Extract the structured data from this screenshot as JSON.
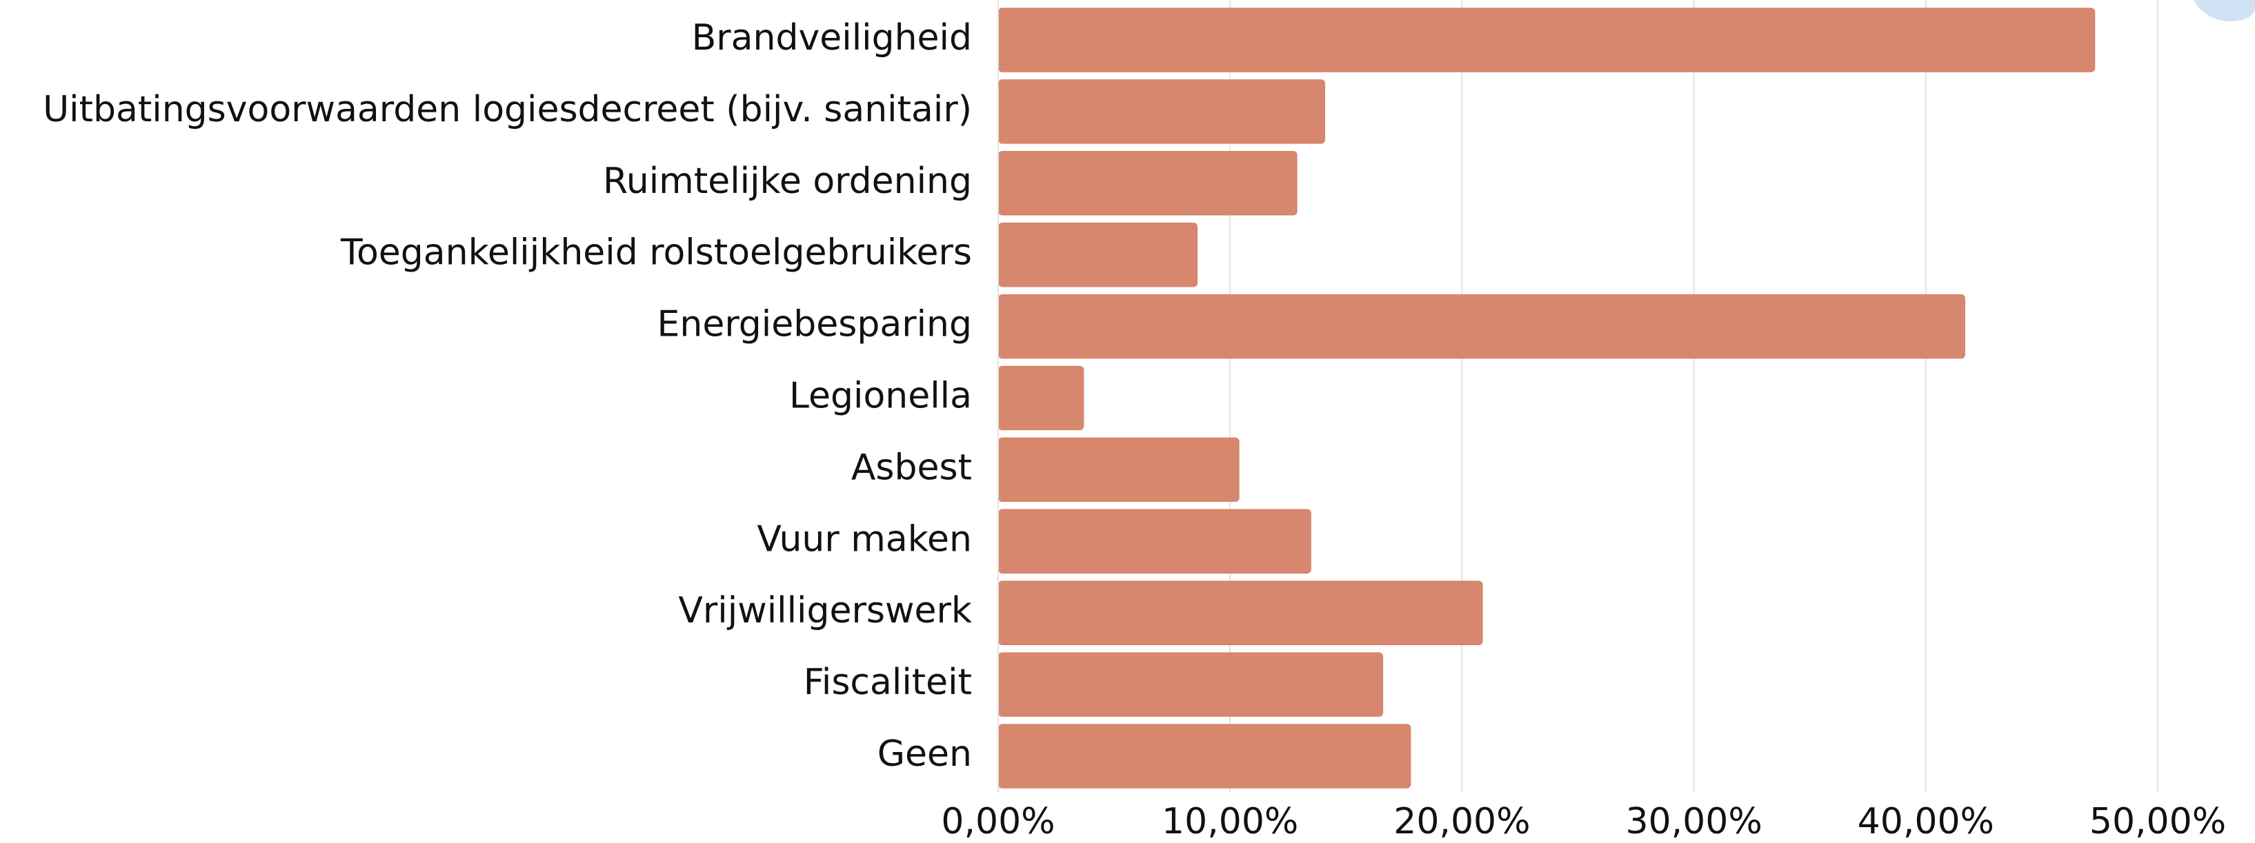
{
  "chart_data": {
    "type": "barh",
    "categories": [
      "Brandveiligheid",
      "Uitbatingsvoorwaarden logiesdecreet (bijv. sanitair)",
      "Ruimtelijke ordening",
      "Toegankelijkheid rolstoelgebruikers",
      "Energiebesparing",
      "Legionella",
      "Asbest",
      "Vuur maken",
      "Vrijwilligerswerk",
      "Fiscaliteit",
      "Geen"
    ],
    "values": [
      47.3,
      14.1,
      12.9,
      8.6,
      41.7,
      3.7,
      10.4,
      13.5,
      20.9,
      16.6,
      17.8
    ],
    "color": "#d6876d",
    "xlim": [
      0,
      50
    ],
    "xticks": [
      {
        "value": 0,
        "label": "0,00%"
      },
      {
        "value": 10,
        "label": "10,00%"
      },
      {
        "value": 20,
        "label": "20,00%"
      },
      {
        "value": 30,
        "label": "30,00%"
      },
      {
        "value": 40,
        "label": "40,00%"
      },
      {
        "value": 50,
        "label": "50,00%"
      }
    ],
    "grid": true
  }
}
